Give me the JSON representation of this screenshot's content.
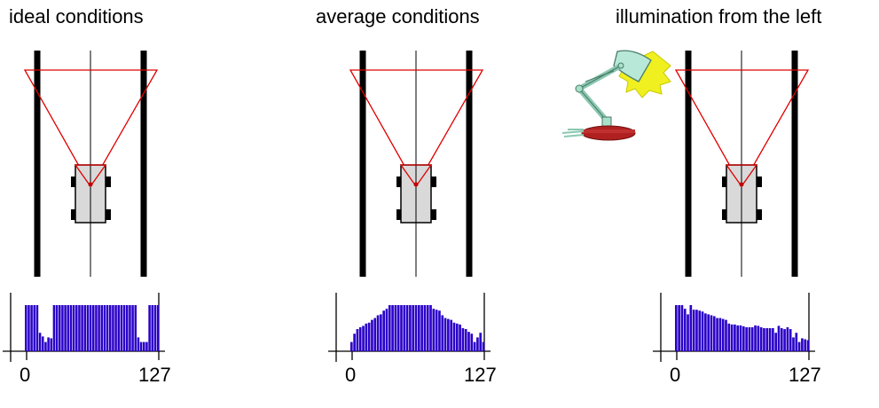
{
  "panels": [
    {
      "title": "ideal conditions",
      "axis_min_label": "0",
      "axis_max_label": "127"
    },
    {
      "title": "average conditions",
      "axis_min_label": "0",
      "axis_max_label": "127"
    },
    {
      "title": "illumination from the left",
      "axis_min_label": "0",
      "axis_max_label": "127"
    }
  ],
  "colors": {
    "track_line": "#000000",
    "camera_view": "#e00000",
    "car_body": "#d9d9d9",
    "histogram_bar": "#2a00c8",
    "histogram_bar_edge": "#1a0090",
    "lamp_body": "#a8e0c8",
    "lamp_base": "#b02020",
    "lamp_light": "#f0f020"
  },
  "chart_data": [
    {
      "type": "bar",
      "xlim": [
        0,
        127
      ],
      "values": [
        100,
        100,
        100,
        100,
        100,
        40,
        32,
        20,
        30,
        28,
        100,
        100,
        100,
        100,
        100,
        100,
        100,
        100,
        100,
        100,
        100,
        100,
        100,
        100,
        100,
        100,
        100,
        100,
        100,
        100,
        100,
        100,
        100,
        100,
        100,
        100,
        100,
        100,
        100,
        100,
        30,
        20,
        20,
        20,
        100,
        100,
        100,
        100
      ]
    },
    {
      "type": "bar",
      "xlim": [
        0,
        127
      ],
      "values": [
        20,
        38,
        48,
        52,
        55,
        60,
        62,
        68,
        72,
        78,
        80,
        88,
        92,
        100,
        100,
        100,
        100,
        100,
        100,
        100,
        100,
        100,
        100,
        100,
        100,
        100,
        100,
        100,
        92,
        90,
        88,
        78,
        72,
        70,
        68,
        62,
        60,
        58,
        50,
        48,
        42,
        38,
        20,
        30,
        40,
        20
      ]
    },
    {
      "type": "bar",
      "xlim": [
        0,
        127
      ],
      "values": [
        100,
        100,
        100,
        92,
        80,
        100,
        90,
        90,
        88,
        86,
        82,
        80,
        78,
        76,
        72,
        72,
        70,
        68,
        60,
        58,
        58,
        56,
        56,
        54,
        52,
        52,
        52,
        56,
        55,
        52,
        50,
        50,
        50,
        50,
        40,
        55,
        50,
        48,
        52,
        48,
        30,
        40,
        20,
        28,
        26,
        24
      ]
    }
  ]
}
